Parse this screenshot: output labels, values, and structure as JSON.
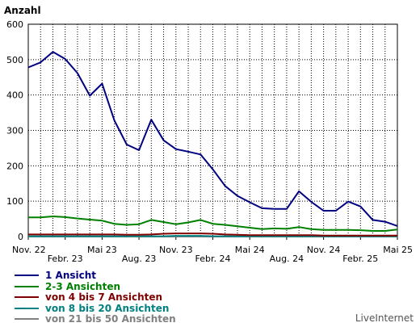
{
  "chart_data": {
    "type": "line",
    "ylabel": "Anzahl",
    "ylim": [
      0,
      600
    ],
    "y_ticks": [
      "0",
      "100",
      "200",
      "300",
      "400",
      "500",
      "600"
    ],
    "x_ticks_upper": [
      "Nov. 22",
      "Mai 23",
      "Nov. 23",
      "Mai 24",
      "Nov. 24",
      "Mai 25"
    ],
    "x_ticks_lower": [
      "Febr. 23",
      "Aug. 23",
      "Febr. 24",
      "Aug. 24",
      "Febr. 25"
    ],
    "x_range_months": [
      "Nov. 22",
      "Mai 25"
    ],
    "grid": true,
    "series": [
      {
        "name": "1 Ansicht",
        "color": "#000080",
        "values": [
          478,
          492,
          522,
          502,
          462,
          398,
          432,
          328,
          260,
          244,
          330,
          272,
          247,
          240,
          232,
          190,
          143,
          115,
          97,
          80,
          78,
          78,
          128,
          98,
          73,
          73,
          99,
          85,
          47,
          42,
          30
        ]
      },
      {
        "name": "2-3 Ansichten",
        "color": "#008000",
        "values": [
          54,
          54,
          57,
          55,
          51,
          48,
          45,
          36,
          33,
          35,
          47,
          41,
          35,
          40,
          47,
          36,
          33,
          29,
          25,
          21,
          23,
          22,
          27,
          21,
          19,
          19,
          19,
          18,
          16,
          16,
          20
        ]
      },
      {
        "name": "von 4  bis 7 Ansichten",
        "color": "#800000",
        "values": [
          6,
          6,
          6,
          6,
          6,
          6,
          6,
          6,
          5,
          5,
          6,
          8,
          9,
          9,
          9,
          8,
          6,
          5,
          4,
          4,
          4,
          4,
          4,
          4,
          3,
          3,
          3,
          3,
          3,
          3,
          3
        ]
      },
      {
        "name": "von 8  bis 20 Ansichten",
        "color": "#008080",
        "values": [
          1,
          1,
          1,
          1,
          1,
          1,
          1,
          1,
          1,
          1,
          1,
          1,
          2,
          2,
          2,
          1,
          1,
          1,
          1,
          1,
          1,
          1,
          1,
          1,
          1,
          1,
          1,
          1,
          1,
          1,
          1
        ]
      },
      {
        "name": "von 21  bis 50 Ansichten",
        "color": "#808080",
        "values": [
          0,
          0,
          0,
          0,
          0,
          0,
          0,
          0,
          0,
          0,
          0,
          0,
          0,
          0,
          0,
          0,
          0,
          0,
          0,
          0,
          0,
          0,
          0,
          0,
          0,
          0,
          0,
          0,
          0,
          0,
          0
        ]
      }
    ]
  },
  "watermark": "LiveInternet"
}
